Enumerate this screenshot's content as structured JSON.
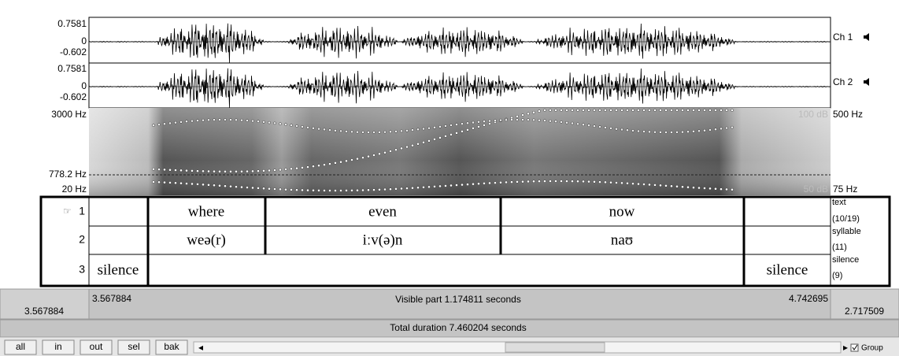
{
  "channels": [
    {
      "max": "0.7581",
      "zero": "0",
      "min": "-0.602",
      "label": "Ch 1"
    },
    {
      "max": "0.7581",
      "zero": "0",
      "min": "-0.602",
      "label": "Ch 2"
    }
  ],
  "spectrogram": {
    "top": "3000 Hz",
    "cursor": "778.2 Hz",
    "bottom": "20 Hz",
    "pitch_top": "500 Hz",
    "pitch_bottom": "75 Hz",
    "db_top": "100 dB",
    "db_bottom": "50 dB"
  },
  "tiers": [
    {
      "number": "1",
      "name": "text",
      "count": "(10/19)",
      "labels": [
        "where",
        "even",
        "now"
      ]
    },
    {
      "number": "2",
      "name": "syllable",
      "count": "(11)",
      "labels": [
        "weə(r)",
        "iːv(ə)n",
        "naʊ"
      ]
    },
    {
      "number": "3",
      "name": "silence",
      "count": "(9)",
      "labels": [
        "silence",
        "silence"
      ]
    }
  ],
  "times": {
    "window_start": "3.567884",
    "visible_start": "3.567884",
    "visible": "Visible part 1.174811 seconds",
    "visible_end": "4.742695",
    "after": "2.717509",
    "total": "Total duration 7.460204 seconds"
  },
  "buttons": [
    "all",
    "in",
    "out",
    "sel",
    "bak"
  ],
  "group": "Group"
}
